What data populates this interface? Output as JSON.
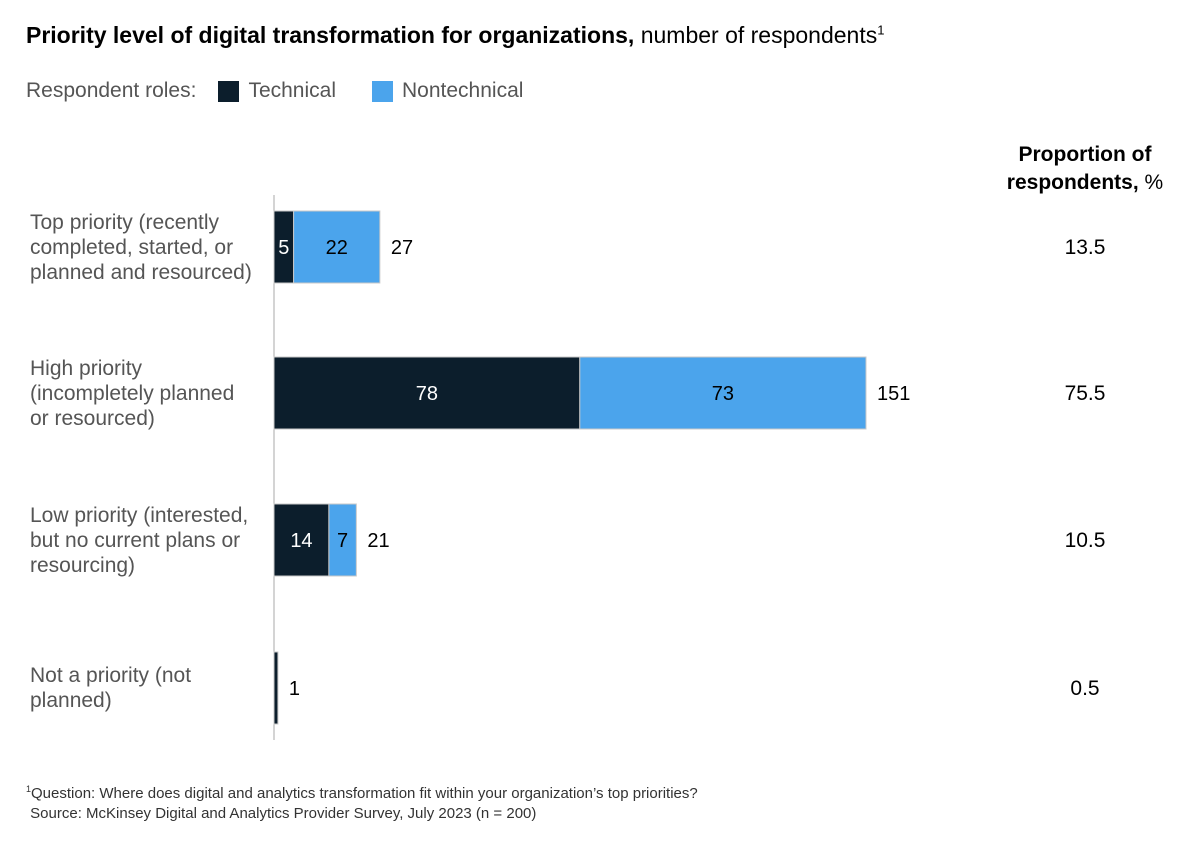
{
  "chart_data": {
    "type": "bar",
    "orientation": "horizontal",
    "stacked": true,
    "title": "Priority level of digital transformation for organizations,",
    "subtitle": "number of respondents",
    "title_footnote_marker": "1",
    "legend_label": "Respondent roles:",
    "categories": [
      "Top priority (recently completed, started, or planned and resourced)",
      "High priority (incompletely planned or resourced)",
      "Low priority (interested, but no current plans or resourcing)",
      "Not a priority (not planned)"
    ],
    "category_lines": [
      [
        "Top priority (recently",
        "completed, started, or",
        "planned and resourced)"
      ],
      [
        "High priority",
        "(incompletely planned",
        "or resourced)"
      ],
      [
        "Low priority (interested,",
        "but no current plans or",
        "resourcing)"
      ],
      [
        "Not a priority (not",
        "planned)"
      ]
    ],
    "series": [
      {
        "name": "Technical",
        "color": "#0c1e2c",
        "values": [
          5,
          78,
          14,
          1
        ],
        "show_labels": [
          true,
          true,
          true,
          false
        ]
      },
      {
        "name": "Nontechnical",
        "color": "#4ba4ec",
        "values": [
          22,
          73,
          7,
          0
        ],
        "show_labels": [
          true,
          true,
          true,
          false
        ]
      }
    ],
    "totals": [
      "27",
      "151",
      "21",
      "1"
    ],
    "proportion_header": {
      "bold": "Proportion of respondents,",
      "unit": "%"
    },
    "proportion_header_lines": [
      "Proportion of",
      "respondents,"
    ],
    "proportions": [
      "13.5",
      "75.5",
      "10.5",
      "0.5"
    ],
    "xlim": [
      0,
      151
    ]
  },
  "footnote": {
    "marker": "1",
    "question": "Question: Where does digital and analytics transformation fit within your organization’s top priorities?",
    "source": "Source: McKinsey Digital and Analytics Provider Survey, July 2023 (n = 200)"
  }
}
